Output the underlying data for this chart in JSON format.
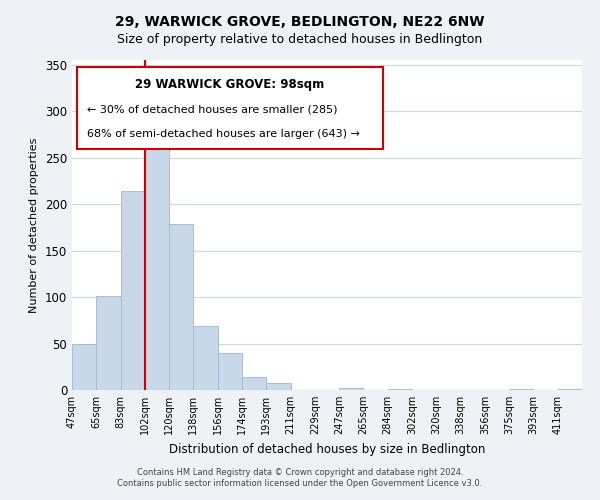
{
  "title": "29, WARWICK GROVE, BEDLINGTON, NE22 6NW",
  "subtitle": "Size of property relative to detached houses in Bedlington",
  "xlabel": "Distribution of detached houses by size in Bedlington",
  "ylabel": "Number of detached properties",
  "bar_labels": [
    "47sqm",
    "65sqm",
    "83sqm",
    "102sqm",
    "120sqm",
    "138sqm",
    "156sqm",
    "174sqm",
    "193sqm",
    "211sqm",
    "229sqm",
    "247sqm",
    "265sqm",
    "284sqm",
    "302sqm",
    "320sqm",
    "338sqm",
    "356sqm",
    "375sqm",
    "393sqm",
    "411sqm"
  ],
  "bar_values": [
    49,
    101,
    214,
    272,
    179,
    69,
    40,
    14,
    7,
    0,
    0,
    2,
    0,
    1,
    0,
    0,
    0,
    0,
    1,
    0,
    1
  ],
  "bar_color": "#c8d8e8",
  "bar_edge_color": "#a0b8d0",
  "vline_x": 3,
  "vline_color": "#cc0000",
  "ylim": [
    0,
    355
  ],
  "yticks": [
    0,
    50,
    100,
    150,
    200,
    250,
    300,
    350
  ],
  "annotation_title": "29 WARWICK GROVE: 98sqm",
  "annotation_line1": "← 30% of detached houses are smaller (285)",
  "annotation_line2": "68% of semi-detached houses are larger (643) →",
  "footer_line1": "Contains HM Land Registry data © Crown copyright and database right 2024.",
  "footer_line2": "Contains public sector information licensed under the Open Government Licence v3.0.",
  "background_color": "#eef2f7",
  "plot_bg_color": "#ffffff",
  "grid_color": "#c8d8e8",
  "title_fontsize": 10,
  "subtitle_fontsize": 9
}
